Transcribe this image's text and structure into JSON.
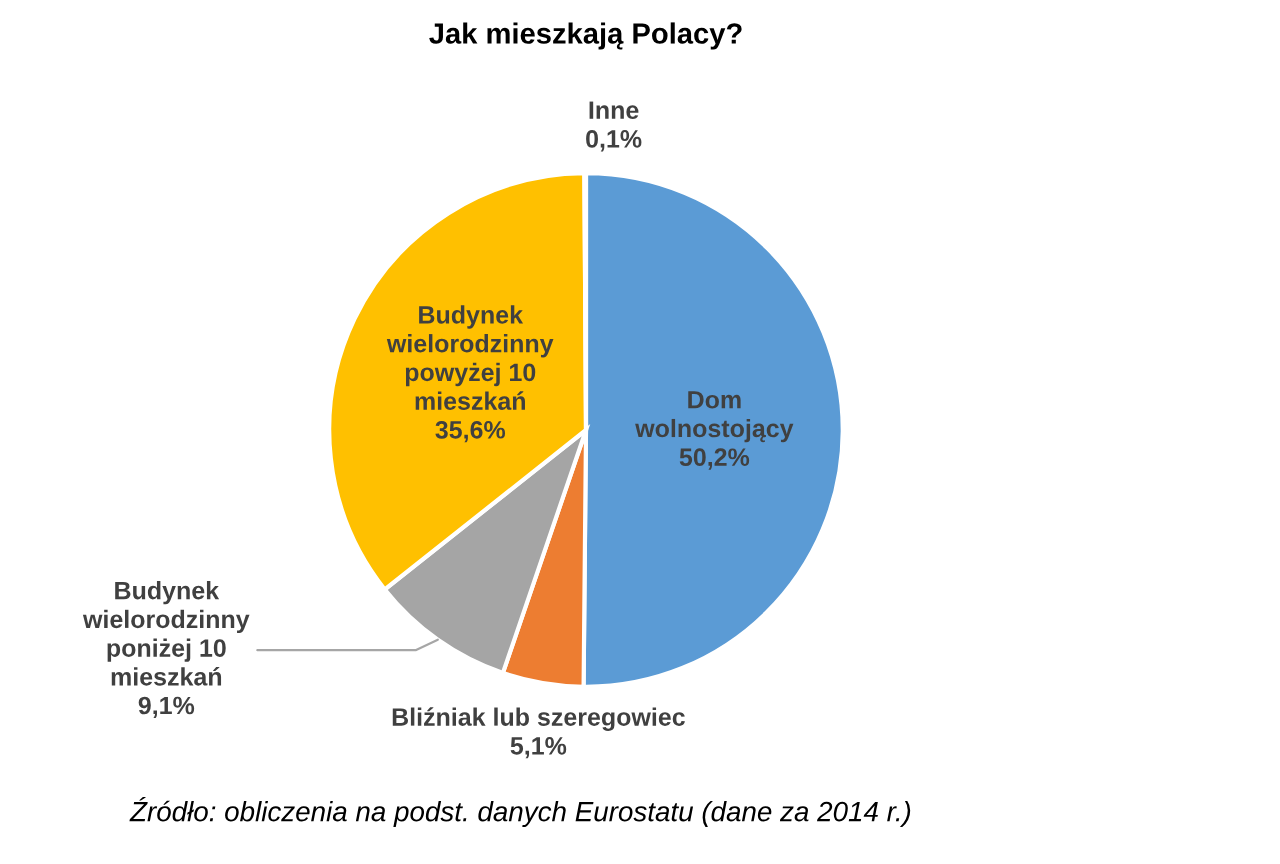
{
  "chart_data": {
    "type": "pie",
    "title": "Jak mieszkają Polacy?",
    "categories": [
      "Dom\nwolnostojący",
      "Bliźniak lub szeregowiec",
      "Budynek\nwielorodzinny\nponiżej 10\nmieszkań",
      "Budynek\nwielorodzinny\npowyżej 10\nmieszkań",
      "Inne"
    ],
    "values": [
      50.2,
      5.1,
      9.1,
      35.6,
      0.1
    ],
    "colors": [
      "#5b9bd5",
      "#ed7d31",
      "#a5a5a5",
      "#ffc000",
      "#4472c4"
    ],
    "value_labels": [
      "50,2%",
      "5,1%",
      "9,1%",
      "35,6%",
      "0,1%"
    ],
    "annotations": [
      "Źródło: obliczenia na podst. danych Eurostatu (dane za 2014 r.)"
    ]
  }
}
